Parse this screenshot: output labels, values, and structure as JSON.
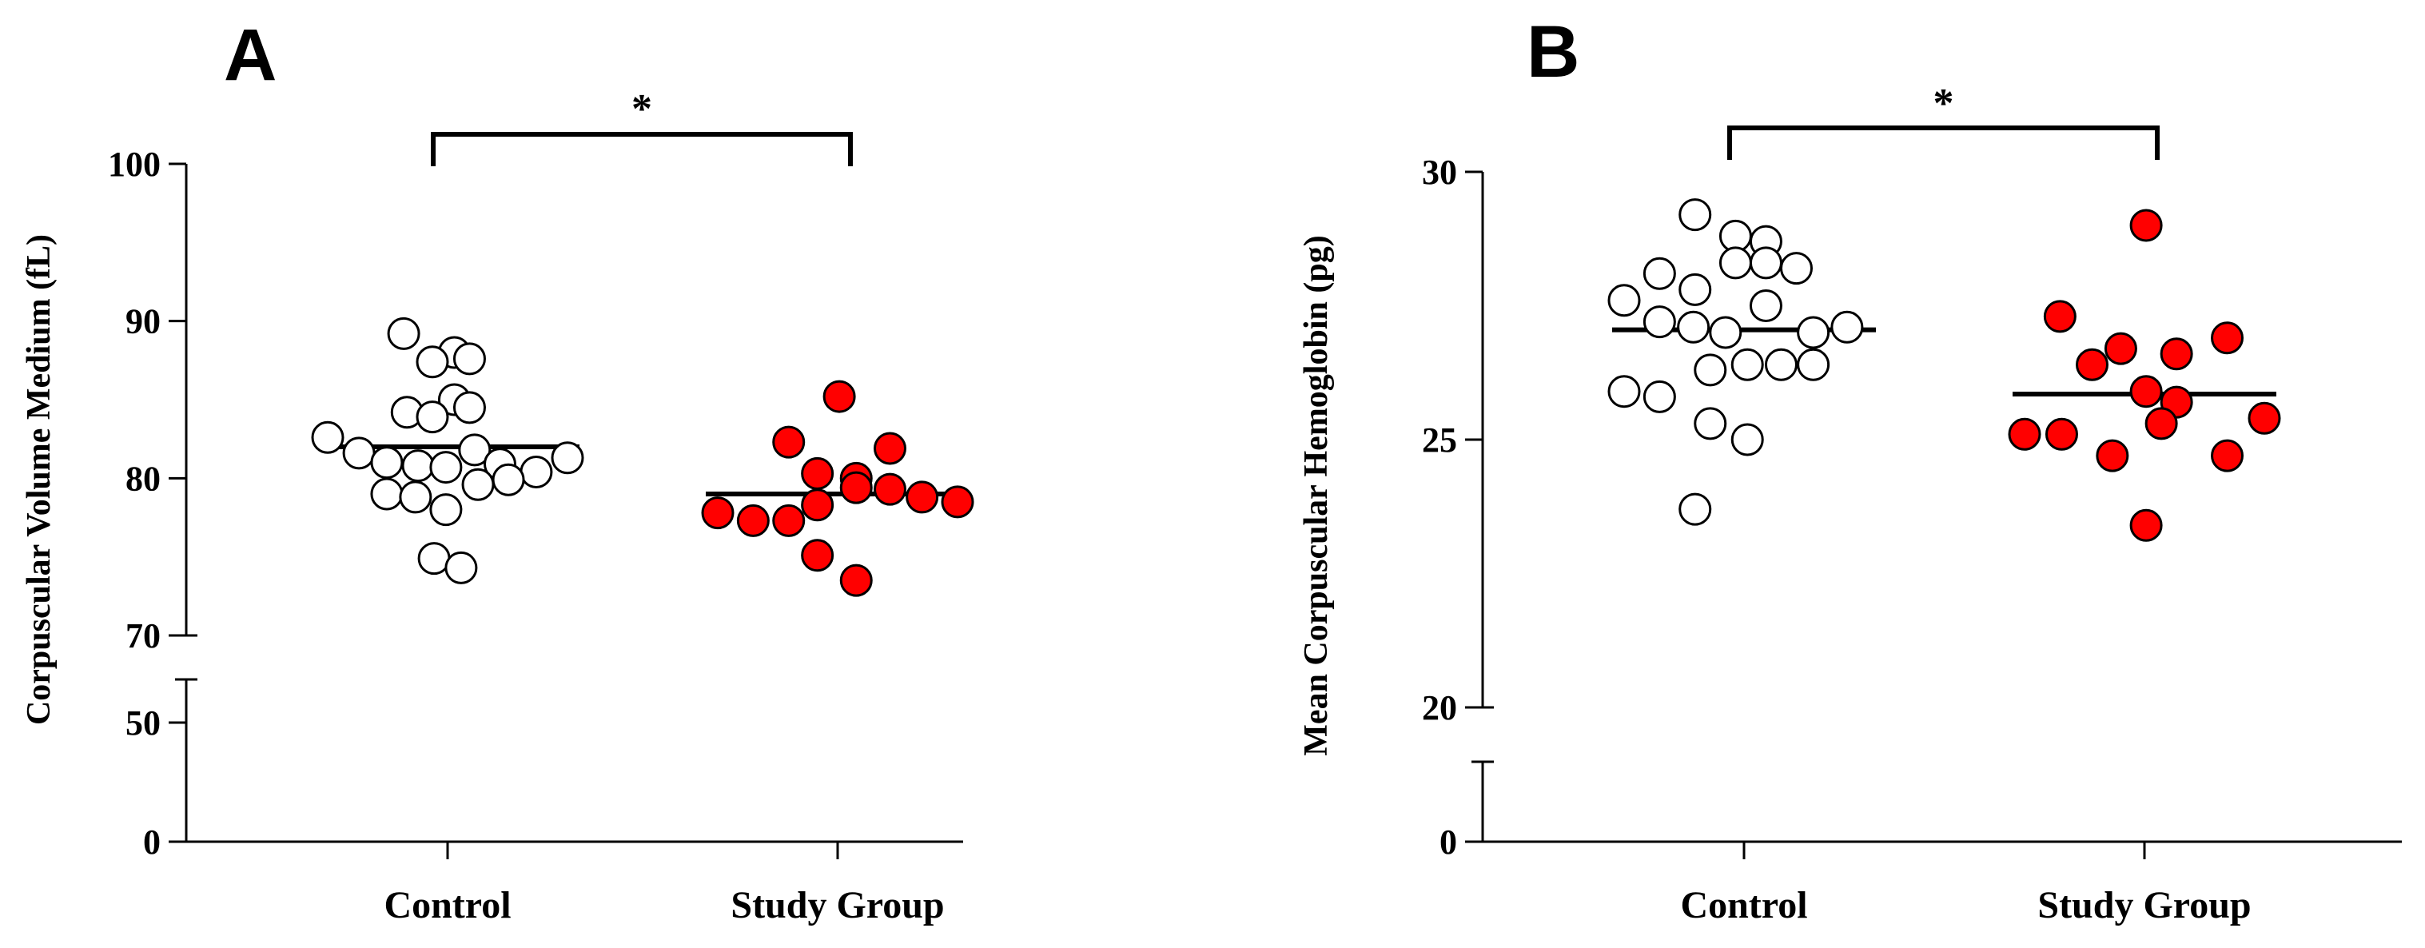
{
  "chart_data": [
    {
      "panel": "A",
      "type": "scatter",
      "ylabel": "Corpuscular Volume Medium (fL)",
      "categories": [
        "Control",
        "Study Group"
      ],
      "yticks": [
        0,
        50,
        70,
        80,
        90,
        100
      ],
      "ylim": [
        0,
        100
      ],
      "axis_break": [
        55,
        67
      ],
      "series": [
        {
          "category": "Control",
          "fill": "#ffffff",
          "points": [
            {
              "dx": -0.52,
              "y": 89.2
            },
            {
              "dx": 0.08,
              "y": 88.0
            },
            {
              "dx": 0.26,
              "y": 87.6
            },
            {
              "dx": -0.18,
              "y": 87.4
            },
            {
              "dx": 0.08,
              "y": 85.0
            },
            {
              "dx": 0.26,
              "y": 84.5
            },
            {
              "dx": -0.48,
              "y": 84.2
            },
            {
              "dx": -0.18,
              "y": 83.9
            },
            {
              "dx": -1.42,
              "y": 82.6
            },
            {
              "dx": -1.05,
              "y": 81.6
            },
            {
              "dx": 0.32,
              "y": 81.8
            },
            {
              "dx": 1.42,
              "y": 81.3
            },
            {
              "dx": 0.62,
              "y": 80.9
            },
            {
              "dx": -0.72,
              "y": 81.0
            },
            {
              "dx": -0.35,
              "y": 80.8
            },
            {
              "dx": -0.02,
              "y": 80.7
            },
            {
              "dx": 1.05,
              "y": 80.4
            },
            {
              "dx": 0.72,
              "y": 79.9
            },
            {
              "dx": 0.36,
              "y": 79.6
            },
            {
              "dx": -0.72,
              "y": 79.0
            },
            {
              "dx": -0.38,
              "y": 78.8
            },
            {
              "dx": -0.02,
              "y": 78.0
            },
            {
              "dx": -0.16,
              "y": 74.9
            },
            {
              "dx": 0.16,
              "y": 74.3
            }
          ],
          "mean": 82.0
        },
        {
          "category": "Study Group",
          "fill": "#ff0000",
          "points": [
            {
              "dx": 0.02,
              "y": 85.2
            },
            {
              "dx": -0.58,
              "y": 82.3
            },
            {
              "dx": 0.62,
              "y": 81.9
            },
            {
              "dx": -0.24,
              "y": 80.3
            },
            {
              "dx": 0.22,
              "y": 80.0
            },
            {
              "dx": 0.22,
              "y": 79.4
            },
            {
              "dx": 0.62,
              "y": 79.3
            },
            {
              "dx": 1.0,
              "y": 78.8
            },
            {
              "dx": 1.42,
              "y": 78.5
            },
            {
              "dx": -0.24,
              "y": 78.3
            },
            {
              "dx": -1.42,
              "y": 77.8
            },
            {
              "dx": -1.0,
              "y": 77.3
            },
            {
              "dx": -0.58,
              "y": 77.3
            },
            {
              "dx": -0.24,
              "y": 75.1
            },
            {
              "dx": 0.22,
              "y": 73.5
            }
          ],
          "mean": 79.0
        }
      ],
      "annotation": {
        "text": "*",
        "between": [
          "Control",
          "Study Group"
        ],
        "y": 102
      }
    },
    {
      "panel": "B",
      "type": "scatter",
      "ylabel": "Mean Corpuscular Hemoglobin (pg)",
      "categories": [
        "Control",
        "Study Group"
      ],
      "yticks": [
        0,
        20,
        25,
        30
      ],
      "ylim": [
        0,
        30
      ],
      "axis_break": [
        1.5,
        19
      ],
      "series": [
        {
          "category": "Control",
          "fill": "#ffffff",
          "points": [
            {
              "dx": -0.58,
              "y": 29.2
            },
            {
              "dx": -0.1,
              "y": 28.8
            },
            {
              "dx": 0.26,
              "y": 28.7
            },
            {
              "dx": -0.1,
              "y": 28.3
            },
            {
              "dx": 0.26,
              "y": 28.3
            },
            {
              "dx": 0.62,
              "y": 28.2
            },
            {
              "dx": -1.0,
              "y": 28.1
            },
            {
              "dx": -0.58,
              "y": 27.8
            },
            {
              "dx": -1.42,
              "y": 27.6
            },
            {
              "dx": 0.26,
              "y": 27.5
            },
            {
              "dx": -1.0,
              "y": 27.2
            },
            {
              "dx": -0.6,
              "y": 27.1
            },
            {
              "dx": 1.22,
              "y": 27.1
            },
            {
              "dx": -0.22,
              "y": 27.0
            },
            {
              "dx": 0.82,
              "y": 27.0
            },
            {
              "dx": -0.4,
              "y": 26.3
            },
            {
              "dx": 0.04,
              "y": 26.4
            },
            {
              "dx": 0.44,
              "y": 26.4
            },
            {
              "dx": 0.82,
              "y": 26.4
            },
            {
              "dx": -1.42,
              "y": 25.9
            },
            {
              "dx": -1.0,
              "y": 25.8
            },
            {
              "dx": -0.4,
              "y": 25.3
            },
            {
              "dx": 0.04,
              "y": 25.0
            },
            {
              "dx": -0.58,
              "y": 23.7
            }
          ],
          "mean": 27.05
        },
        {
          "category": "Study Group",
          "fill": "#ff0000",
          "points": [
            {
              "dx": 0.02,
              "y": 29.0
            },
            {
              "dx": -1.0,
              "y": 27.3
            },
            {
              "dx": 0.98,
              "y": 26.9
            },
            {
              "dx": -0.28,
              "y": 26.7
            },
            {
              "dx": 0.38,
              "y": 26.6
            },
            {
              "dx": -0.62,
              "y": 26.4
            },
            {
              "dx": 0.02,
              "y": 25.9
            },
            {
              "dx": 0.38,
              "y": 25.7
            },
            {
              "dx": 0.2,
              "y": 25.3
            },
            {
              "dx": 1.42,
              "y": 25.4
            },
            {
              "dx": -1.42,
              "y": 25.1
            },
            {
              "dx": -0.98,
              "y": 25.1
            },
            {
              "dx": -0.38,
              "y": 24.7
            },
            {
              "dx": 0.98,
              "y": 24.7
            },
            {
              "dx": 0.02,
              "y": 23.4
            }
          ],
          "mean": 25.85
        }
      ],
      "annotation": {
        "text": "*",
        "between": [
          "Control",
          "Study Group"
        ],
        "y": 30.8
      }
    }
  ]
}
